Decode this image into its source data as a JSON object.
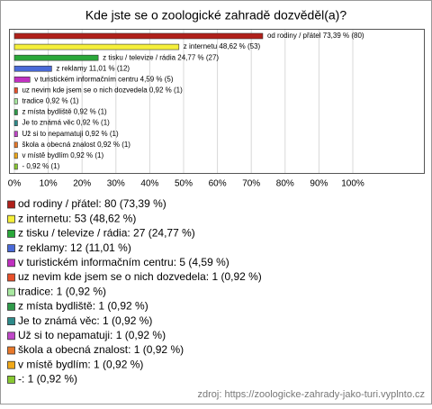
{
  "chart_data": {
    "type": "bar",
    "orientation": "horizontal",
    "title": "Kde jste se o zoologické zahradě dozvěděl(a)?",
    "values": [
      73.39,
      48.62,
      24.77,
      11.01,
      4.59,
      0.92,
      0.92,
      0.92,
      0.92,
      0.92,
      0.92,
      0.92,
      0.92
    ],
    "value_labels": [
      "od rodiny / přátel 73,39 % (80)",
      "z internetu 48,62 % (53)",
      "z tisku / televize / rádia 24,77 % (27)",
      "z reklamy 11,01 % (12)",
      "v turistickém informačním centru 4,59 % (5)",
      "uz nevim kde jsem se o nich dozvedela 0,92 % (1)",
      "tradice 0,92 % (1)",
      "z místa bydliště 0,92 % (1)",
      "Je to známá věc 0,92 % (1)",
      "Už si to nepamatuji 0,92 % (1)",
      "škola a obecná znalost 0,92 % (1)",
      "v místě bydlím 0,92 % (1)",
      "- 0,92 % (1)"
    ],
    "legend_labels": [
      "od rodiny / přátel: 80 (73,39 %)",
      "z internetu: 53 (48,62 %)",
      "z tisku / televize / rádia: 27 (24,77 %)",
      "z reklamy: 12 (11,01 %)",
      "v turistickém informačním centru: 5 (4,59 %)",
      "uz nevim kde jsem se o nich dozvedela: 1 (0,92 %)",
      "tradice: 1 (0,92 %)",
      "z místa bydliště: 1 (0,92 %)",
      "Je to známá věc: 1 (0,92 %)",
      "Už si to nepamatuji: 1 (0,92 %)",
      "škola a obecná znalost: 1 (0,92 %)",
      "v místě bydlím: 1 (0,92 %)",
      "-: 1 (0,92 %)"
    ],
    "colors": [
      "#b0201a",
      "#f5ef3a",
      "#2aa83a",
      "#4a6ad8",
      "#c030c0",
      "#e8502a",
      "#a8e8a0",
      "#2f9a4a",
      "#2e8a8a",
      "#c048c8",
      "#e8782a",
      "#f0a818",
      "#88c832"
    ],
    "xlim": [
      0,
      100
    ],
    "xticks": [
      {
        "value": 0,
        "label": "0%"
      },
      {
        "value": 10,
        "label": "10%"
      },
      {
        "value": 20,
        "label": "20%"
      },
      {
        "value": 30,
        "label": "30%"
      },
      {
        "value": 40,
        "label": "40%"
      },
      {
        "value": 50,
        "label": "50%"
      },
      {
        "value": 60,
        "label": "60%"
      },
      {
        "value": 70,
        "label": "70%"
      },
      {
        "value": 80,
        "label": "80%"
      },
      {
        "value": 90,
        "label": "90%"
      },
      {
        "value": 100,
        "label": "100%"
      }
    ],
    "grid": true,
    "source": "zdroj: https://zoologicke-zahrady-jako-turi.vyplnto.cz"
  }
}
